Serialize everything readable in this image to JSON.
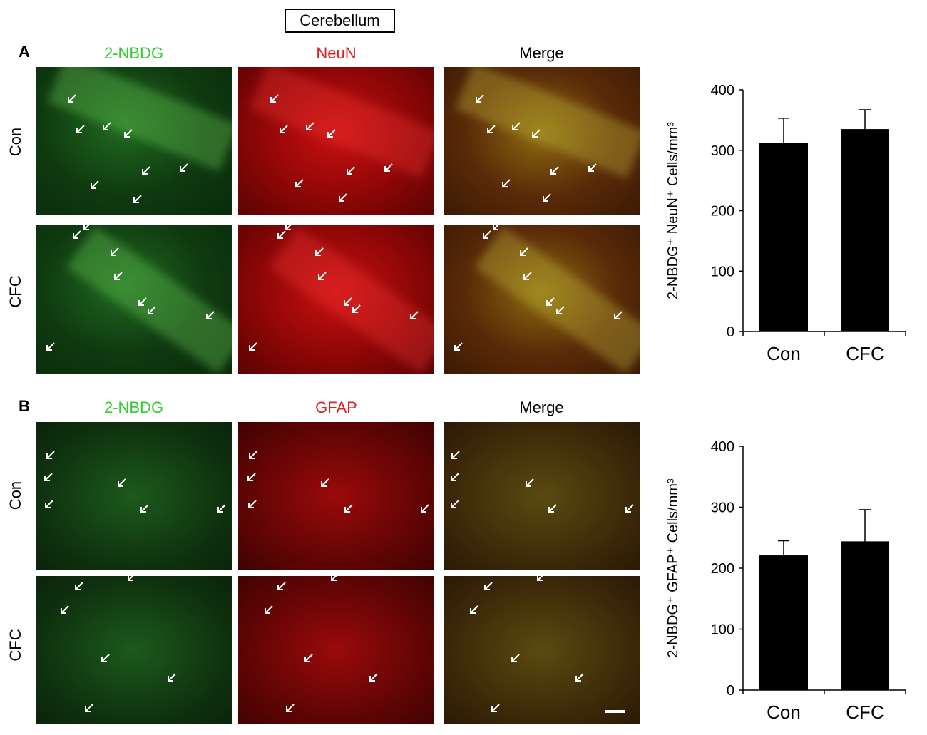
{
  "figure_title": "Cerebellum",
  "panels": {
    "A": {
      "letter": "A",
      "columns": [
        "2-NBDG",
        "NeuN",
        "Merge"
      ],
      "rows": [
        "Con",
        "CFC"
      ]
    },
    "B": {
      "letter": "B",
      "columns": [
        "2-NBDG",
        "GFAP",
        "Merge"
      ],
      "rows": [
        "Con",
        "CFC"
      ]
    }
  },
  "colors": {
    "green_label": "#33cc33",
    "red_label": "#e02020",
    "bar_fill": "#000000"
  },
  "chart_data": [
    {
      "type": "bar",
      "title": "",
      "xlabel": "",
      "ylabel": "2-NBDG⁺ NeuN⁺ Cells/mm³",
      "categories": [
        "Con",
        "CFC"
      ],
      "values": [
        312,
        335
      ],
      "errors": [
        41,
        32
      ],
      "ylim": [
        0,
        400
      ],
      "yticks": [
        "0",
        "100",
        "200",
        "300",
        "400"
      ],
      "grid": false
    },
    {
      "type": "bar",
      "title": "",
      "xlabel": "",
      "ylabel": "2-NBDG⁺ GFAP⁺ Cells/mm³",
      "categories": [
        "Con",
        "CFC"
      ],
      "values": [
        221,
        244
      ],
      "errors": [
        24,
        52
      ],
      "ylim": [
        0,
        400
      ],
      "yticks": [
        "0",
        "100",
        "200",
        "300",
        "400"
      ],
      "grid": false
    }
  ]
}
